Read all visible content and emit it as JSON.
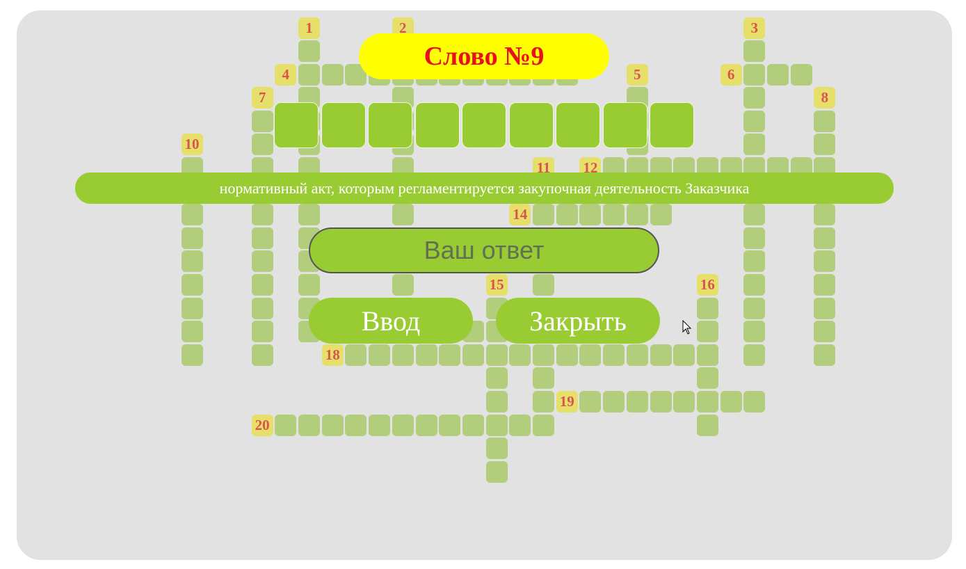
{
  "title": "Слово №9",
  "clue": "нормативный акт, которым регламентируется закупочная деятельность Заказчика",
  "answer": {
    "placeholder": "Ваш ответ",
    "value": ""
  },
  "buttons": {
    "enter": "Ввод",
    "close": "Закрыть"
  },
  "active_word": {
    "number": 9,
    "length": 9
  },
  "clue_numbers": [
    "1",
    "2",
    "3",
    "4",
    "5",
    "6",
    "7",
    "8",
    "10",
    "11",
    "12",
    "14",
    "15",
    "16",
    "18",
    "19",
    "20"
  ],
  "colors": {
    "board": "#e2e2e2",
    "cell": "#b2cd7c",
    "active": "#99cc33",
    "number_bg": "#e6e06a",
    "number_text": "#d9534f",
    "title_bg": "#ffff00",
    "title_text": "#e8101c"
  }
}
